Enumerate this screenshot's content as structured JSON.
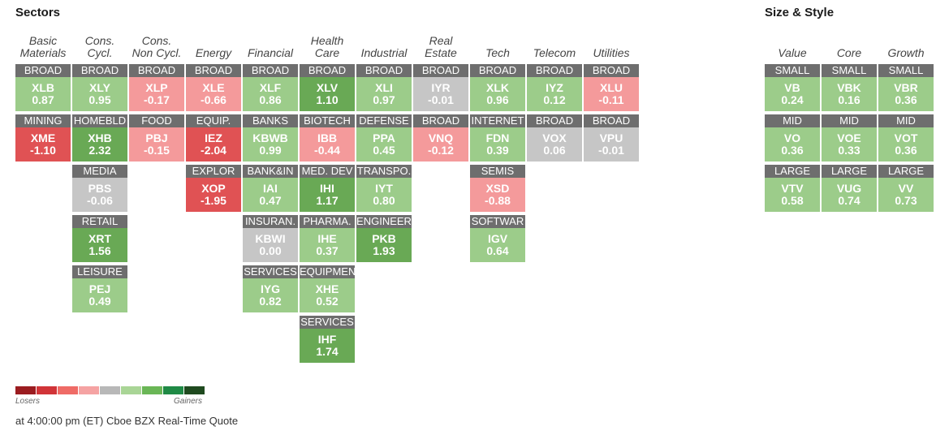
{
  "sectors_title": "Sectors",
  "size_style_title": "Size & Style",
  "colors": {
    "dark_red": "#a31a1f",
    "red": "#e05254",
    "pink": "#f49a9b",
    "gray": "#c6c6c6",
    "light_green": "#9ccc8a",
    "green": "#69a955",
    "dark_green": "#1e7a3a",
    "label_bg": "#6e6e6e"
  },
  "sector_columns": [
    {
      "head1": "Basic",
      "head2": "Materials",
      "tiles": [
        {
          "label": "BROAD",
          "ticker": "XLB",
          "value": "0.87",
          "tone": "light_green"
        },
        {
          "label": "MINING",
          "ticker": "XME",
          "value": "-1.10",
          "tone": "red"
        }
      ]
    },
    {
      "head1": "Cons.",
      "head2": "Cycl.",
      "tiles": [
        {
          "label": "BROAD",
          "ticker": "XLY",
          "value": "0.95",
          "tone": "light_green"
        },
        {
          "label": "HOMEBLD",
          "ticker": "XHB",
          "value": "2.32",
          "tone": "green"
        },
        {
          "label": "MEDIA",
          "ticker": "PBS",
          "value": "-0.06",
          "tone": "gray"
        },
        {
          "label": "RETAIL",
          "ticker": "XRT",
          "value": "1.56",
          "tone": "green"
        },
        {
          "label": "LEISURE",
          "ticker": "PEJ",
          "value": "0.49",
          "tone": "light_green"
        }
      ]
    },
    {
      "head1": "Cons.",
      "head2": "Non Cycl.",
      "tiles": [
        {
          "label": "BROAD",
          "ticker": "XLP",
          "value": "-0.17",
          "tone": "pink"
        },
        {
          "label": "FOOD",
          "ticker": "PBJ",
          "value": "-0.15",
          "tone": "pink"
        }
      ]
    },
    {
      "head1": "",
      "head2": "Energy",
      "tiles": [
        {
          "label": "BROAD",
          "ticker": "XLE",
          "value": "-0.66",
          "tone": "pink"
        },
        {
          "label": "EQUIP.",
          "ticker": "IEZ",
          "value": "-2.04",
          "tone": "red"
        },
        {
          "label": "EXPLOR",
          "ticker": "XOP",
          "value": "-1.95",
          "tone": "red"
        }
      ]
    },
    {
      "head1": "",
      "head2": "Financial",
      "tiles": [
        {
          "label": "BROAD",
          "ticker": "XLF",
          "value": "0.86",
          "tone": "light_green"
        },
        {
          "label": "BANKS",
          "ticker": "KBWB",
          "value": "0.99",
          "tone": "light_green"
        },
        {
          "label": "BANK&IN",
          "ticker": "IAI",
          "value": "0.47",
          "tone": "light_green"
        },
        {
          "label": "INSURAN.",
          "ticker": "KBWI",
          "value": "0.00",
          "tone": "gray"
        },
        {
          "label": "SERVICES",
          "ticker": "IYG",
          "value": "0.82",
          "tone": "light_green"
        }
      ]
    },
    {
      "head1": "Health",
      "head2": "Care",
      "tiles": [
        {
          "label": "BROAD",
          "ticker": "XLV",
          "value": "1.10",
          "tone": "green"
        },
        {
          "label": "BIOTECH",
          "ticker": "IBB",
          "value": "-0.44",
          "tone": "pink"
        },
        {
          "label": "MED. DEV",
          "ticker": "IHI",
          "value": "1.17",
          "tone": "green"
        },
        {
          "label": "PHARMA.",
          "ticker": "IHE",
          "value": "0.37",
          "tone": "light_green"
        },
        {
          "label": "EQUIPMEN",
          "ticker": "XHE",
          "value": "0.52",
          "tone": "light_green"
        },
        {
          "label": "SERVICES",
          "ticker": "IHF",
          "value": "1.74",
          "tone": "green"
        }
      ]
    },
    {
      "head1": "",
      "head2": "Industrial",
      "tiles": [
        {
          "label": "BROAD",
          "ticker": "XLI",
          "value": "0.97",
          "tone": "light_green"
        },
        {
          "label": "DEFENSE",
          "ticker": "PPA",
          "value": "0.45",
          "tone": "light_green"
        },
        {
          "label": "TRANSPO.",
          "ticker": "IYT",
          "value": "0.80",
          "tone": "light_green"
        },
        {
          "label": "ENGINEER",
          "ticker": "PKB",
          "value": "1.93",
          "tone": "green"
        }
      ]
    },
    {
      "head1": "Real",
      "head2": "Estate",
      "tiles": [
        {
          "label": "BROAD",
          "ticker": "IYR",
          "value": "-0.01",
          "tone": "gray"
        },
        {
          "label": "BROAD",
          "ticker": "VNQ",
          "value": "-0.12",
          "tone": "pink"
        }
      ]
    },
    {
      "head1": "",
      "head2": "Tech",
      "tiles": [
        {
          "label": "BROAD",
          "ticker": "XLK",
          "value": "0.96",
          "tone": "light_green"
        },
        {
          "label": "INTERNET",
          "ticker": "FDN",
          "value": "0.39",
          "tone": "light_green"
        },
        {
          "label": "SEMIS",
          "ticker": "XSD",
          "value": "-0.88",
          "tone": "pink"
        },
        {
          "label": "SOFTWAR",
          "ticker": "IGV",
          "value": "0.64",
          "tone": "light_green"
        }
      ]
    },
    {
      "head1": "",
      "head2": "Telecom",
      "tiles": [
        {
          "label": "BROAD",
          "ticker": "IYZ",
          "value": "0.12",
          "tone": "light_green"
        },
        {
          "label": "BROAD",
          "ticker": "VOX",
          "value": "0.06",
          "tone": "gray"
        }
      ]
    },
    {
      "head1": "",
      "head2": "Utilities",
      "tiles": [
        {
          "label": "BROAD",
          "ticker": "XLU",
          "value": "-0.11",
          "tone": "pink"
        },
        {
          "label": "BROAD",
          "ticker": "VPU",
          "value": "-0.01",
          "tone": "gray"
        }
      ]
    }
  ],
  "style_columns": [
    {
      "head1": "",
      "head2": "Value",
      "tiles": [
        {
          "label": "SMALL",
          "ticker": "VB",
          "value": "0.24",
          "tone": "light_green"
        },
        {
          "label": "MID",
          "ticker": "VO",
          "value": "0.36",
          "tone": "light_green"
        },
        {
          "label": "LARGE",
          "ticker": "VTV",
          "value": "0.58",
          "tone": "light_green"
        }
      ]
    },
    {
      "head1": "",
      "head2": "Core",
      "tiles": [
        {
          "label": "SMALL",
          "ticker": "VBK",
          "value": "0.16",
          "tone": "light_green"
        },
        {
          "label": "MID",
          "ticker": "VOE",
          "value": "0.33",
          "tone": "light_green"
        },
        {
          "label": "LARGE",
          "ticker": "VUG",
          "value": "0.74",
          "tone": "light_green"
        }
      ]
    },
    {
      "head1": "",
      "head2": "Growth",
      "tiles": [
        {
          "label": "SMALL",
          "ticker": "VBR",
          "value": "0.36",
          "tone": "light_green"
        },
        {
          "label": "MID",
          "ticker": "VOT",
          "value": "0.36",
          "tone": "light_green"
        },
        {
          "label": "LARGE",
          "ticker": "VV",
          "value": "0.73",
          "tone": "light_green"
        }
      ]
    }
  ],
  "legend": {
    "swatches": [
      "#9b1c20",
      "#d13438",
      "#ef6b66",
      "#f5a3a3",
      "#b8b8b8",
      "#a9d596",
      "#6ab656",
      "#1f8a45",
      "#1f4a1f"
    ],
    "losers_label": "Losers",
    "gainers_label": "Gainers"
  },
  "footer": "at 4:00:00 pm (ET) Cboe BZX Real-Time Quote"
}
